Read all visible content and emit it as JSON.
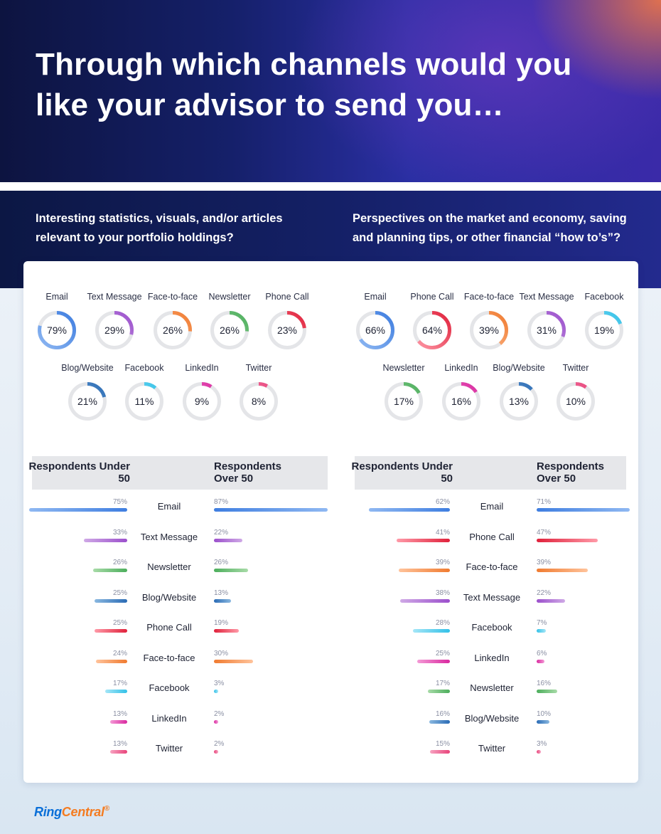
{
  "title": "Through which channels would you like your advisor to send you…",
  "questions": {
    "left": "Interesting statistics, visuals, and/or articles relevant to your portfolio holdings?",
    "right": "Perspectives on the market and economy, saving and planning tips, or other financial “how to’s”?"
  },
  "brand": {
    "name_a": "Ring",
    "name_b": "Central",
    "mark": "®"
  },
  "channel_colors": {
    "Email": [
      "#8fb8f2",
      "#3f7ee0"
    ],
    "Text Message": [
      "#cfa9e6",
      "#9b4fcc"
    ],
    "Face-to-face": [
      "#ffc39b",
      "#f07b30"
    ],
    "Newsletter": [
      "#a8dba8",
      "#4cae5c"
    ],
    "Phone Call": [
      "#ff9aa8",
      "#e0213b"
    ],
    "Blog/Website": [
      "#8ab8e0",
      "#2a6bb5"
    ],
    "Facebook": [
      "#a5e6f7",
      "#33c1e8"
    ],
    "LinkedIn": [
      "#f49ad6",
      "#d9289f"
    ],
    "Twitter": [
      "#f7a3c1",
      "#e8437a"
    ]
  },
  "chart_data": [
    {
      "type": "donut",
      "panel": "left",
      "categories": [
        "Email",
        "Text Message",
        "Face-to-face",
        "Newsletter",
        "Phone Call",
        "Blog/Website",
        "Facebook",
        "LinkedIn",
        "Twitter"
      ],
      "values": [
        79,
        29,
        26,
        26,
        23,
        21,
        11,
        9,
        8
      ],
      "labels": [
        "79%",
        "29%",
        "26%",
        "26%",
        "23%",
        "21%",
        "11%",
        "9%",
        "8%"
      ]
    },
    {
      "type": "donut",
      "panel": "right",
      "categories": [
        "Email",
        "Phone Call",
        "Face-to-face",
        "Text Message",
        "Facebook",
        "Newsletter",
        "LinkedIn",
        "Blog/Website",
        "Twitter"
      ],
      "values": [
        66,
        64,
        39,
        31,
        19,
        17,
        16,
        13,
        10
      ],
      "labels": [
        "66%",
        "64%",
        "39%",
        "31%",
        "19%",
        "17%",
        "16%",
        "13%",
        "10%"
      ]
    },
    {
      "type": "bar",
      "panel": "left",
      "headers": {
        "under": "Respondents Under 50",
        "over": "Respondents Over 50"
      },
      "categories": [
        "Email",
        "Text Message",
        "Newsletter",
        "Blog/Website",
        "Phone Call",
        "Face-to-face",
        "Facebook",
        "LinkedIn",
        "Twitter"
      ],
      "series": [
        {
          "name": "Respondents Under 50",
          "values": [
            75,
            33,
            26,
            25,
            25,
            24,
            17,
            13,
            13
          ],
          "labels": [
            "75%",
            "33%",
            "26%",
            "25%",
            "25%",
            "24%",
            "17%",
            "13%",
            "13%"
          ]
        },
        {
          "name": "Respondents Over 50",
          "values": [
            87,
            22,
            26,
            13,
            19,
            30,
            3,
            2,
            2
          ],
          "labels": [
            "87%",
            "22%",
            "26%",
            "13%",
            "19%",
            "30%",
            "3%",
            "2%",
            "2%"
          ]
        }
      ]
    },
    {
      "type": "bar",
      "panel": "right",
      "headers": {
        "under": "Respondents Under 50",
        "over": "Respondents Over 50"
      },
      "categories": [
        "Email",
        "Phone Call",
        "Face-to-face",
        "Text Message",
        "Facebook",
        "LinkedIn",
        "Newsletter",
        "Blog/Website",
        "Twitter"
      ],
      "series": [
        {
          "name": "Respondents Under 50",
          "values": [
            62,
            41,
            39,
            38,
            28,
            25,
            17,
            16,
            15
          ],
          "labels": [
            "62%",
            "41%",
            "39%",
            "38%",
            "28%",
            "25%",
            "17%",
            "16%",
            "15%"
          ]
        },
        {
          "name": "Respondents Over 50",
          "values": [
            71,
            47,
            39,
            22,
            7,
            6,
            16,
            10,
            3
          ],
          "labels": [
            "71%",
            "47%",
            "39%",
            "22%",
            "7%",
            "6%",
            "16%",
            "10%",
            "3%"
          ]
        }
      ]
    }
  ]
}
